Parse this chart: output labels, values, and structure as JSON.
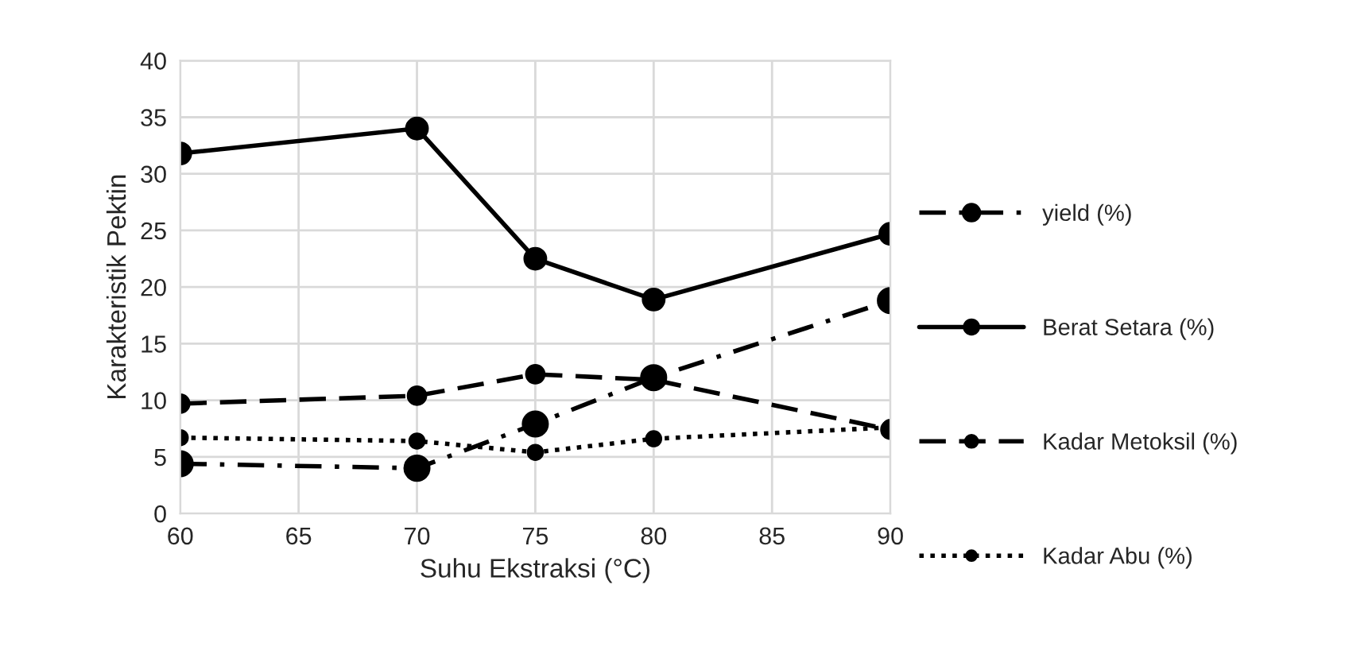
{
  "chart_data": {
    "type": "line",
    "xlabel": "Suhu Ekstraksi (°C)",
    "ylabel": "Karakteristik Pektin",
    "x": [
      60,
      70,
      75,
      80,
      90
    ],
    "series": [
      {
        "name": "yield (%)",
        "color": "#000000",
        "line_style": "dashdot",
        "values": [
          4.4,
          4.0,
          7.9,
          12.0,
          18.8
        ]
      },
      {
        "name": "Berat Setara (%)",
        "color": "#000000",
        "line_style": "solid",
        "values": [
          31.8,
          34.0,
          22.5,
          18.9,
          24.7
        ]
      },
      {
        "name": "Kadar Metoksil (%)",
        "color": "#000000",
        "line_style": "dashed",
        "values": [
          9.7,
          10.4,
          12.3,
          11.8,
          7.4
        ]
      },
      {
        "name": "Kadar Abu (%)",
        "color": "#000000",
        "line_style": "dotted",
        "values": [
          6.7,
          6.4,
          5.4,
          6.6,
          7.6
        ]
      }
    ],
    "xlim": [
      60,
      90
    ],
    "xticks": [
      60,
      65,
      70,
      75,
      80,
      85,
      90
    ],
    "ylim": [
      0,
      40
    ],
    "yticks": [
      0,
      5,
      10,
      15,
      20,
      25,
      30,
      35,
      40
    ],
    "grid": true,
    "legend": "right",
    "marker": "circle"
  }
}
